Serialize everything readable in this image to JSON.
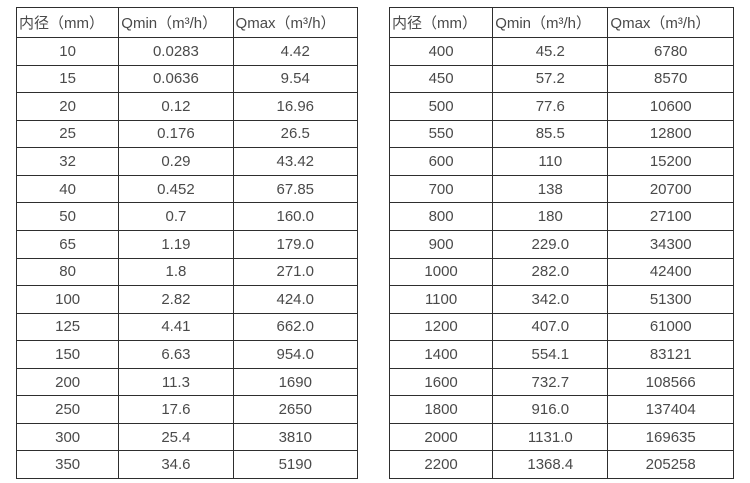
{
  "colors": {
    "background": "#ffffff",
    "text": "#4a4a4a",
    "border": "#2e2e2e"
  },
  "tables": [
    {
      "name": "small-diameter-table",
      "headers": [
        "内径（mm）",
        "Qmin（m³/h）",
        "Qmax（m³/h）"
      ],
      "rows": [
        [
          "10",
          "0.0283",
          "4.42"
        ],
        [
          "15",
          "0.0636",
          "9.54"
        ],
        [
          "20",
          "0.12",
          "16.96"
        ],
        [
          "25",
          "0.176",
          "26.5"
        ],
        [
          "32",
          "0.29",
          "43.42"
        ],
        [
          "40",
          "0.452",
          "67.85"
        ],
        [
          "50",
          "0.7",
          "160.0"
        ],
        [
          "65",
          "1.19",
          "179.0"
        ],
        [
          "80",
          "1.8",
          "271.0"
        ],
        [
          "100",
          "2.82",
          "424.0"
        ],
        [
          "125",
          "4.41",
          "662.0"
        ],
        [
          "150",
          "6.63",
          "954.0"
        ],
        [
          "200",
          "11.3",
          "1690"
        ],
        [
          "250",
          "17.6",
          "2650"
        ],
        [
          "300",
          "25.4",
          "3810"
        ],
        [
          "350",
          "34.6",
          "5190"
        ]
      ]
    },
    {
      "name": "large-diameter-table",
      "headers": [
        "内径（mm）",
        "Qmin（m³/h）",
        "Qmax（m³/h）"
      ],
      "rows": [
        [
          "400",
          "45.2",
          "6780"
        ],
        [
          "450",
          "57.2",
          "8570"
        ],
        [
          "500",
          "77.6",
          "10600"
        ],
        [
          "550",
          "85.5",
          "12800"
        ],
        [
          "600",
          "110",
          "15200"
        ],
        [
          "700",
          "138",
          "20700"
        ],
        [
          "800",
          "180",
          "27100"
        ],
        [
          "900",
          "229.0",
          "34300"
        ],
        [
          "1000",
          "282.0",
          "42400"
        ],
        [
          "1100",
          "342.0",
          "51300"
        ],
        [
          "1200",
          "407.0",
          "61000"
        ],
        [
          "1400",
          "554.1",
          "83121"
        ],
        [
          "1600",
          "732.7",
          "108566"
        ],
        [
          "1800",
          "916.0",
          "137404"
        ],
        [
          "2000",
          "1131.0",
          "169635"
        ],
        [
          "2200",
          "1368.4",
          "205258"
        ]
      ]
    }
  ]
}
